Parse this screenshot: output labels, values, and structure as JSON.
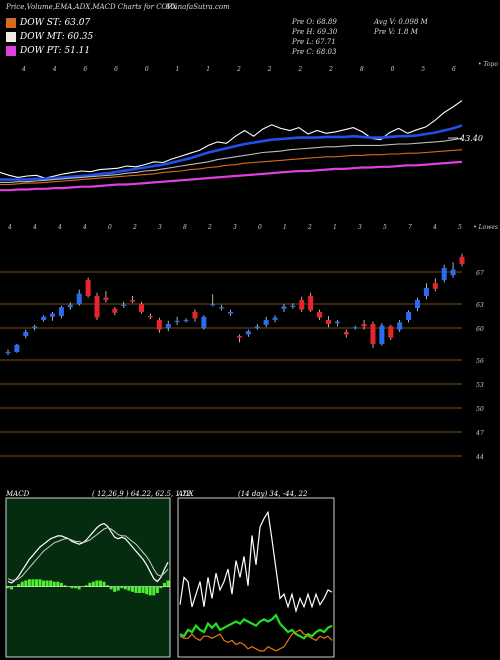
{
  "header": {
    "title": "Price,Volume,EMA,ADX,MACD Charts for COPX",
    "site": "MunafaSutra.com"
  },
  "legend": [
    {
      "label": "DOW ST: 63.07",
      "color": "#d86a1e"
    },
    {
      "label": "DOW MT: 60.35",
      "color": "#f0ece2"
    },
    {
      "label": "DOW PT: 51.11",
      "color": "#e040e0"
    }
  ],
  "price_info": {
    "open": "Pre  O: 68.89",
    "high": "Pre  H: 69.30",
    "low": "Pre  L: 67.71",
    "close": "Pre  C: 68.03",
    "avg_volume": "Avg V: 0.098  M",
    "prev_volume": "Pre  V: 1.8  M"
  },
  "chart_data": [
    {
      "type": "line",
      "panel": "ema",
      "corner_label": "• Topo",
      "x_tick_labels": [
        "4",
        "4",
        "6",
        "6",
        "0",
        "1",
        "1",
        "2",
        "2",
        "2",
        "2",
        "8",
        "0",
        "5",
        "6"
      ],
      "annotation": "43.40",
      "series": [
        {
          "color": "#ffffff",
          "values": [
            43.0,
            42.6,
            42.3,
            42.5,
            42.6,
            42.2,
            42.5,
            42.8,
            43.0,
            43.2,
            43.1,
            43.4,
            43.5,
            43.6,
            43.9,
            43.8,
            44.1,
            44.5,
            44.4,
            44.9,
            45.3,
            45.7,
            46.1,
            46.8,
            47.3,
            47.1,
            48.1,
            48.9,
            48.1,
            49.1,
            49.7,
            49.2,
            48.9,
            49.3,
            48.4,
            48.9,
            48.5,
            48.7,
            49.0,
            49.3,
            48.7,
            47.8,
            47.6,
            48.6,
            49.2,
            48.5,
            49.0,
            49.4,
            50.3,
            51.4,
            52.2,
            53.1
          ]
        },
        {
          "color": "#2050e8",
          "values": [
            42.0,
            42.0,
            42.0,
            42.0,
            42.1,
            42.1,
            42.2,
            42.3,
            42.4,
            42.5,
            42.6,
            42.8,
            42.9,
            43.1,
            43.3,
            43.5,
            43.7,
            43.9,
            44.1,
            44.4,
            44.7,
            45.0,
            45.4,
            45.8,
            46.1,
            46.4,
            46.7,
            47.0,
            47.2,
            47.4,
            47.6,
            47.7,
            47.8,
            47.9,
            47.9,
            47.9,
            48.0,
            48.0,
            48.0,
            48.1,
            48.0,
            47.9,
            47.9,
            48.0,
            48.1,
            48.1,
            48.2,
            48.4,
            48.6,
            48.9,
            49.2,
            49.6
          ]
        },
        {
          "color": "#bbbbbb",
          "values": [
            41.6,
            41.6,
            41.7,
            41.7,
            41.8,
            41.9,
            42.0,
            42.1,
            42.2,
            42.3,
            42.4,
            42.5,
            42.6,
            42.7,
            42.9,
            43.0,
            43.2,
            43.3,
            43.5,
            43.7,
            43.9,
            44.1,
            44.3,
            44.5,
            44.8,
            45.0,
            45.2,
            45.4,
            45.6,
            45.8,
            45.9,
            46.0,
            46.2,
            46.3,
            46.4,
            46.5,
            46.6,
            46.6,
            46.7,
            46.8,
            46.8,
            46.8,
            46.8,
            46.9,
            47.0,
            47.0,
            47.1,
            47.2,
            47.3,
            47.4,
            47.6,
            47.8
          ]
        },
        {
          "color": "#d86a1e",
          "values": [
            41.3,
            41.3,
            41.4,
            41.5,
            41.5,
            41.6,
            41.7,
            41.8,
            41.9,
            42.0,
            42.1,
            42.2,
            42.3,
            42.4,
            42.5,
            42.6,
            42.7,
            42.8,
            43.0,
            43.1,
            43.2,
            43.4,
            43.5,
            43.7,
            43.8,
            44.0,
            44.1,
            44.3,
            44.4,
            44.5,
            44.6,
            44.7,
            44.8,
            44.9,
            45.0,
            45.1,
            45.2,
            45.2,
            45.3,
            45.4,
            45.4,
            45.5,
            45.5,
            45.6,
            45.6,
            45.7,
            45.7,
            45.8,
            45.9,
            46.0,
            46.1,
            46.2
          ]
        },
        {
          "color": "#e040e0",
          "values": [
            40.5,
            40.5,
            40.6,
            40.6,
            40.7,
            40.7,
            40.8,
            40.8,
            40.9,
            41.0,
            41.0,
            41.1,
            41.2,
            41.3,
            41.3,
            41.4,
            41.5,
            41.6,
            41.7,
            41.8,
            41.9,
            42.0,
            42.1,
            42.2,
            42.3,
            42.4,
            42.5,
            42.6,
            42.7,
            42.8,
            42.9,
            43.0,
            43.1,
            43.2,
            43.2,
            43.3,
            43.4,
            43.5,
            43.5,
            43.6,
            43.7,
            43.7,
            43.8,
            43.8,
            43.9,
            44.0,
            44.0,
            44.1,
            44.2,
            44.3,
            44.4,
            44.5
          ]
        }
      ]
    },
    {
      "type": "candlestick",
      "panel": "price",
      "corner_label": "• Lowes",
      "x_tick_labels": [
        "4",
        "4",
        "4",
        "4",
        "0",
        "2",
        "3",
        "8",
        "2",
        "3",
        "0",
        "1",
        "2",
        "1",
        "3",
        "5",
        "7",
        "4",
        "5"
      ],
      "y_ticks": [
        67,
        63,
        60,
        56,
        53,
        50,
        47,
        44
      ],
      "ylim": [
        42,
        72
      ],
      "candles": [
        {
          "o": 57.0,
          "h": 57.3,
          "l": 56.6,
          "c": 57.0
        },
        {
          "o": 57.0,
          "h": 58.0,
          "l": 56.9,
          "c": 57.9
        },
        {
          "o": 59.0,
          "h": 59.8,
          "l": 58.7,
          "c": 59.5
        },
        {
          "o": 60.0,
          "h": 60.4,
          "l": 59.7,
          "c": 60.2
        },
        {
          "o": 61.0,
          "h": 61.6,
          "l": 60.8,
          "c": 61.4
        },
        {
          "o": 61.4,
          "h": 62.0,
          "l": 60.9,
          "c": 61.8
        },
        {
          "o": 61.5,
          "h": 62.8,
          "l": 61.2,
          "c": 62.6
        },
        {
          "o": 62.6,
          "h": 63.2,
          "l": 62.3,
          "c": 62.9
        },
        {
          "o": 63.0,
          "h": 64.8,
          "l": 62.8,
          "c": 64.3
        },
        {
          "o": 66.0,
          "h": 66.3,
          "l": 63.8,
          "c": 64.0
        },
        {
          "o": 64.0,
          "h": 64.4,
          "l": 61.0,
          "c": 61.3
        },
        {
          "o": 63.8,
          "h": 64.6,
          "l": 63.2,
          "c": 63.5
        },
        {
          "o": 62.4,
          "h": 62.6,
          "l": 61.6,
          "c": 61.9
        },
        {
          "o": 62.8,
          "h": 63.3,
          "l": 62.5,
          "c": 62.9
        },
        {
          "o": 63.5,
          "h": 64.0,
          "l": 63.1,
          "c": 63.3
        },
        {
          "o": 63.0,
          "h": 63.3,
          "l": 61.8,
          "c": 62.0
        },
        {
          "o": 61.5,
          "h": 61.8,
          "l": 61.1,
          "c": 61.4
        },
        {
          "o": 61.0,
          "h": 61.3,
          "l": 59.4,
          "c": 59.8
        },
        {
          "o": 60.0,
          "h": 60.9,
          "l": 59.6,
          "c": 60.5
        },
        {
          "o": 60.8,
          "h": 61.4,
          "l": 60.4,
          "c": 60.9
        },
        {
          "o": 61.0,
          "h": 61.2,
          "l": 60.7,
          "c": 61.0
        },
        {
          "o": 62.0,
          "h": 62.3,
          "l": 60.8,
          "c": 61.2
        },
        {
          "o": 60.0,
          "h": 61.6,
          "l": 59.8,
          "c": 61.4
        },
        {
          "o": 63.0,
          "h": 64.2,
          "l": 62.7,
          "c": 63.0
        },
        {
          "o": 62.6,
          "h": 62.9,
          "l": 62.2,
          "c": 62.6
        },
        {
          "o": 61.8,
          "h": 62.3,
          "l": 61.5,
          "c": 62.0
        },
        {
          "o": 59.0,
          "h": 59.2,
          "l": 58.2,
          "c": 58.8
        },
        {
          "o": 59.2,
          "h": 59.8,
          "l": 58.9,
          "c": 59.6
        },
        {
          "o": 60.0,
          "h": 60.5,
          "l": 59.8,
          "c": 60.2
        },
        {
          "o": 60.4,
          "h": 61.4,
          "l": 60.1,
          "c": 61.0
        },
        {
          "o": 61.0,
          "h": 61.6,
          "l": 60.7,
          "c": 61.3
        },
        {
          "o": 62.4,
          "h": 63.0,
          "l": 62.0,
          "c": 62.7
        },
        {
          "o": 62.8,
          "h": 63.1,
          "l": 62.4,
          "c": 62.8
        },
        {
          "o": 63.5,
          "h": 63.9,
          "l": 62.0,
          "c": 62.3
        },
        {
          "o": 64.0,
          "h": 64.4,
          "l": 62.0,
          "c": 62.2
        },
        {
          "o": 62.0,
          "h": 62.3,
          "l": 61.0,
          "c": 61.3
        },
        {
          "o": 61.0,
          "h": 61.5,
          "l": 60.1,
          "c": 60.5
        },
        {
          "o": 60.6,
          "h": 61.0,
          "l": 60.2,
          "c": 60.8
        },
        {
          "o": 59.5,
          "h": 59.8,
          "l": 58.8,
          "c": 59.2
        },
        {
          "o": 60.0,
          "h": 60.3,
          "l": 59.8,
          "c": 60.1
        },
        {
          "o": 60.5,
          "h": 61.0,
          "l": 59.8,
          "c": 60.2
        },
        {
          "o": 60.5,
          "h": 60.8,
          "l": 57.5,
          "c": 58.0
        },
        {
          "o": 58.0,
          "h": 60.6,
          "l": 57.8,
          "c": 60.3
        },
        {
          "o": 60.2,
          "h": 60.4,
          "l": 58.5,
          "c": 58.8
        },
        {
          "o": 59.8,
          "h": 61.0,
          "l": 59.5,
          "c": 60.7
        },
        {
          "o": 61.0,
          "h": 62.2,
          "l": 60.7,
          "c": 62.0
        },
        {
          "o": 62.5,
          "h": 63.8,
          "l": 62.1,
          "c": 63.5
        },
        {
          "o": 64.0,
          "h": 65.6,
          "l": 63.6,
          "c": 65.0
        },
        {
          "o": 65.6,
          "h": 66.2,
          "l": 64.6,
          "c": 64.9
        },
        {
          "o": 66.0,
          "h": 67.9,
          "l": 65.7,
          "c": 67.5
        },
        {
          "o": 66.6,
          "h": 68.2,
          "l": 66.3,
          "c": 67.3
        },
        {
          "o": 68.9,
          "h": 69.3,
          "l": 67.7,
          "c": 68.0
        }
      ]
    },
    {
      "type": "line",
      "panel": "macd",
      "title": "MACD",
      "params": "( 12,26,9 ) 64.22, 62.5, 1.72",
      "series": [
        {
          "color": "#ffffff",
          "values": [
            -0.6,
            -0.7,
            -0.5,
            -0.2,
            0.2,
            0.6,
            1.0,
            1.3,
            1.6,
            1.9,
            2.1,
            2.3,
            2.5,
            2.6,
            2.7,
            2.7,
            2.6,
            2.5,
            2.3,
            2.2,
            2.1,
            2.2,
            2.4,
            2.7,
            3.0,
            3.3,
            3.5,
            3.6,
            3.4,
            3.0,
            2.6,
            2.5,
            2.6,
            2.5,
            2.2,
            1.9,
            1.6,
            1.3,
            1.0,
            0.6,
            0.1,
            -0.4,
            -0.6,
            -0.3,
            0.3,
            0.8
          ]
        },
        {
          "color": "#cccccc",
          "values": [
            -0.4,
            -0.5,
            -0.5,
            -0.4,
            -0.2,
            0.1,
            0.4,
            0.7,
            1.0,
            1.3,
            1.6,
            1.8,
            2.0,
            2.2,
            2.3,
            2.4,
            2.5,
            2.5,
            2.4,
            2.3,
            2.3,
            2.2,
            2.3,
            2.4,
            2.6,
            2.8,
            3.0,
            3.2,
            3.3,
            3.2,
            3.0,
            2.8,
            2.7,
            2.7,
            2.5,
            2.3,
            2.1,
            1.8,
            1.5,
            1.2,
            0.8,
            0.3,
            -0.1,
            -0.2,
            0.0,
            0.3
          ]
        },
        {
          "color": "#4cf030",
          "values": [
            -0.1,
            -0.2,
            0.0,
            0.2,
            0.4,
            0.5,
            0.6,
            0.6,
            0.6,
            0.6,
            0.5,
            0.5,
            0.5,
            0.4,
            0.4,
            0.3,
            0.1,
            0.0,
            -0.1,
            -0.1,
            -0.2,
            0.0,
            0.1,
            0.3,
            0.4,
            0.5,
            0.5,
            0.4,
            0.1,
            -0.2,
            -0.4,
            -0.3,
            -0.1,
            -0.2,
            -0.3,
            -0.4,
            -0.5,
            -0.5,
            -0.5,
            -0.6,
            -0.7,
            -0.7,
            -0.5,
            -0.1,
            0.3,
            0.5
          ]
        }
      ]
    },
    {
      "type": "line",
      "panel": "adx",
      "title": "ADX",
      "params": "(14 day) 34, -44, 22",
      "series": [
        {
          "color": "#ffffff",
          "values": [
            23,
            36,
            34,
            22,
            28,
            34,
            22,
            36,
            26,
            38,
            30,
            34,
            40,
            28,
            44,
            36,
            46,
            32,
            56,
            42,
            60,
            64,
            67,
            54,
            40,
            26,
            28,
            22,
            28,
            20,
            26,
            22,
            28,
            22,
            28,
            23,
            26,
            30,
            29
          ]
        },
        {
          "color": "#20e020",
          "values": [
            9,
            8,
            11,
            10,
            13,
            11,
            10,
            14,
            12,
            14,
            11,
            12,
            13,
            14,
            15,
            14,
            16,
            15,
            14,
            13,
            15,
            16,
            15,
            16,
            18,
            14,
            12,
            10,
            11,
            9,
            8,
            7,
            9,
            8,
            10,
            11,
            10,
            12,
            13
          ]
        },
        {
          "color": "#e07a10",
          "values": [
            8,
            7,
            7,
            9,
            7,
            6,
            8,
            8,
            7,
            8,
            9,
            6,
            5,
            6,
            4,
            5,
            4,
            2,
            3,
            2,
            1,
            1,
            3,
            2,
            1,
            2,
            3,
            6,
            9,
            10,
            11,
            9,
            8,
            7,
            6,
            8,
            7,
            8,
            6
          ]
        }
      ]
    }
  ]
}
